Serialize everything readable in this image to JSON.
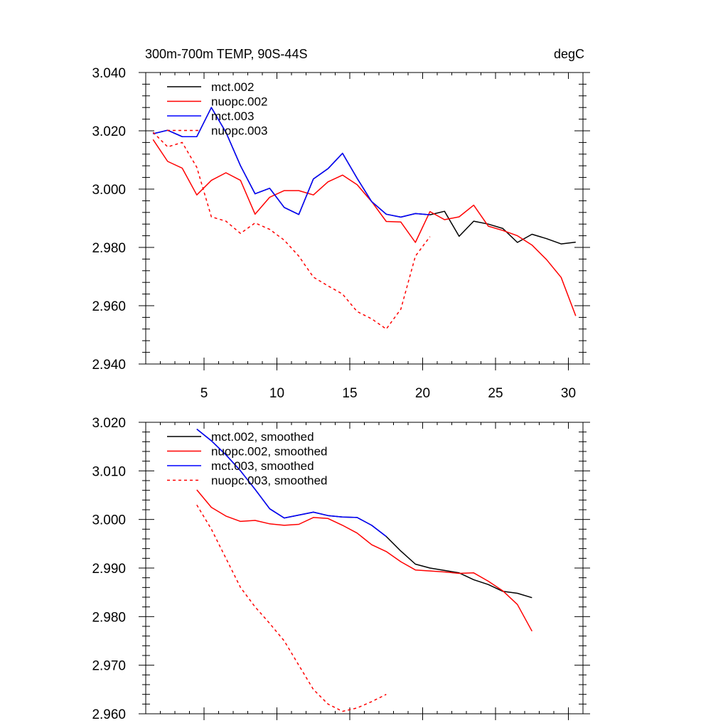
{
  "chart_data": [
    {
      "type": "line",
      "title_left": "300m-700m TEMP, 90S-44S",
      "title_right": "degC",
      "xlim": [
        1,
        31
      ],
      "ylim": [
        2.94,
        3.04
      ],
      "x_ticks": [
        5,
        10,
        15,
        20,
        25,
        30
      ],
      "x_tick_labels": [
        "5",
        "10",
        "15",
        "20",
        "25",
        "30"
      ],
      "y_ticks": [
        2.94,
        2.96,
        2.98,
        3.0,
        3.02,
        3.04
      ],
      "y_tick_labels": [
        "2.940",
        "2.960",
        "2.980",
        "3.000",
        "3.020",
        "3.040"
      ],
      "legend_position": "top-left",
      "series": [
        {
          "name": "mct.002",
          "color": "#000000",
          "dash": "solid",
          "x": [
            1.5,
            2.5,
            3.5,
            4.5,
            5.5,
            6.5,
            7.5,
            8.5,
            9.5,
            10.5,
            11.5,
            12.5,
            13.5,
            14.5,
            15.5,
            16.5,
            17.5,
            18.5,
            19.5,
            20.5,
            21.5,
            22.5,
            23.5,
            24.5,
            25.5,
            26.5,
            27.5,
            28.5,
            29.5,
            30.5
          ],
          "values": [
            3.019,
            3.0202,
            3.018,
            3.018,
            3.028,
            3.0195,
            3.008,
            2.9984,
            3.0003,
            2.9937,
            2.9913,
            3.0035,
            3.007,
            3.0123,
            3.0037,
            2.9957,
            2.9914,
            2.9904,
            2.9916,
            2.9912,
            2.9924,
            2.9838,
            2.989,
            2.988,
            2.9865,
            2.9817,
            2.9845,
            2.983,
            2.9812,
            2.9818
          ]
        },
        {
          "name": "nuopc.002",
          "color": "#ff0000",
          "dash": "solid",
          "x": [
            1.5,
            2.5,
            3.5,
            4.5,
            5.5,
            6.5,
            7.5,
            8.5,
            9.5,
            10.5,
            11.5,
            12.5,
            13.5,
            14.5,
            15.5,
            16.5,
            17.5,
            18.5,
            19.5,
            20.5,
            21.5,
            22.5,
            23.5,
            24.5,
            25.5,
            26.5,
            27.5,
            28.5,
            29.5,
            30.5
          ],
          "values": [
            3.017,
            3.0095,
            3.0072,
            2.998,
            3.003,
            3.0056,
            3.003,
            2.9914,
            2.9972,
            2.9995,
            2.9995,
            2.998,
            3.0025,
            3.0048,
            3.0015,
            2.9957,
            2.9889,
            2.9887,
            2.9817,
            2.9923,
            2.9895,
            2.9905,
            2.9945,
            2.9873,
            2.9858,
            2.984,
            2.9808,
            2.9758,
            2.9697,
            2.9565
          ]
        },
        {
          "name": "mct.003",
          "color": "#0000ff",
          "dash": "solid",
          "x": [
            1.5,
            2.5,
            3.5,
            4.5,
            5.5,
            6.5,
            7.5,
            8.5,
            9.5,
            10.5,
            11.5,
            12.5,
            13.5,
            14.5,
            15.5,
            16.5,
            17.5,
            18.5,
            19.5,
            20.5
          ],
          "values": [
            3.019,
            3.0202,
            3.018,
            3.018,
            3.028,
            3.0195,
            3.008,
            2.9984,
            3.0003,
            2.9937,
            2.9913,
            3.0035,
            3.007,
            3.0123,
            3.0037,
            2.9957,
            2.9914,
            2.9904,
            2.9916,
            2.9912
          ]
        },
        {
          "name": "nuopc.003",
          "color": "#ff0000",
          "dash": "dashed",
          "x": [
            1.5,
            2.5,
            3.5,
            4.5,
            5.5,
            6.5,
            7.5,
            8.5,
            9.5,
            10.5,
            11.5,
            12.5,
            13.5,
            14.5,
            15.5,
            16.5,
            17.5,
            18.5,
            19.5,
            20.5
          ],
          "values": [
            3.0195,
            3.0145,
            3.016,
            3.0075,
            2.9905,
            2.989,
            2.9848,
            2.9884,
            2.9862,
            2.9825,
            2.977,
            2.9698,
            2.9668,
            2.964,
            2.958,
            2.9555,
            2.952,
            2.9588,
            2.977,
            2.9837
          ]
        }
      ]
    },
    {
      "type": "line",
      "xlim": [
        1,
        31
      ],
      "ylim": [
        2.96,
        3.02
      ],
      "x_ticks": [
        5,
        10,
        15,
        20,
        25,
        30
      ],
      "y_ticks": [
        2.96,
        2.97,
        2.98,
        2.99,
        3.0,
        3.01,
        3.02
      ],
      "y_tick_labels": [
        "2.960",
        "2.970",
        "2.980",
        "2.990",
        "3.000",
        "3.010",
        "3.020"
      ],
      "legend_position": "top-left",
      "series": [
        {
          "name": "mct.002, smoothed",
          "color": "#000000",
          "dash": "solid",
          "x": [
            4.5,
            5.5,
            6.5,
            7.5,
            8.5,
            9.5,
            10.5,
            11.5,
            12.5,
            13.5,
            14.5,
            15.5,
            16.5,
            17.5,
            18.5,
            19.5,
            20.5,
            21.5,
            22.5,
            23.5,
            24.5,
            25.5,
            26.5,
            27.5
          ],
          "values": [
            3.0186,
            3.0162,
            3.0133,
            3.01,
            3.0062,
            3.0022,
            3.0003,
            3.0009,
            3.0015,
            3.0008,
            3.0005,
            3.0004,
            2.9988,
            2.9965,
            2.9935,
            2.9908,
            2.99,
            2.9895,
            2.989,
            2.9876,
            2.9866,
            2.9852,
            2.9848,
            2.9839
          ]
        },
        {
          "name": "nuopc.002, smoothed",
          "color": "#ff0000",
          "dash": "solid",
          "x": [
            4.5,
            5.5,
            6.5,
            7.5,
            8.5,
            9.5,
            10.5,
            11.5,
            12.5,
            13.5,
            14.5,
            15.5,
            16.5,
            17.5,
            18.5,
            19.5,
            20.5,
            21.5,
            22.5,
            23.5,
            24.5,
            25.5,
            26.5,
            27.5
          ],
          "values": [
            3.0061,
            3.0025,
            3.0007,
            2.9996,
            2.9998,
            2.9991,
            2.9988,
            2.999,
            3.0004,
            3.0002,
            2.9988,
            2.9972,
            2.9948,
            2.9934,
            2.9913,
            2.9896,
            2.9894,
            2.9892,
            2.9889,
            2.989,
            2.9873,
            2.9853,
            2.9825,
            2.977
          ]
        },
        {
          "name": "mct.003, smoothed",
          "color": "#0000ff",
          "dash": "solid",
          "x": [
            4.5,
            5.5,
            6.5,
            7.5,
            8.5,
            9.5,
            10.5,
            11.5,
            12.5,
            13.5,
            14.5,
            15.5,
            16.5,
            17.5
          ],
          "values": [
            3.0186,
            3.0162,
            3.0133,
            3.01,
            3.0062,
            3.0022,
            3.0003,
            3.0009,
            3.0015,
            3.0008,
            3.0005,
            3.0004,
            2.9988,
            2.9965
          ]
        },
        {
          "name": "nuopc.003, smoothed",
          "color": "#ff0000",
          "dash": "dashed",
          "x": [
            4.5,
            5.5,
            6.5,
            7.5,
            8.5,
            9.5,
            10.5,
            11.5,
            12.5,
            13.5,
            14.5,
            15.5,
            16.5,
            17.5
          ],
          "values": [
            3.003,
            2.998,
            2.992,
            2.986,
            2.982,
            2.9786,
            2.975,
            2.97,
            2.965,
            2.962,
            2.9605,
            2.9612,
            2.9625,
            2.964
          ]
        }
      ]
    }
  ]
}
